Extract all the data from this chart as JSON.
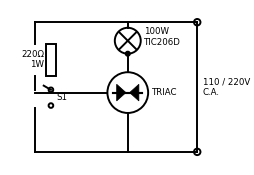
{
  "bg_color": "#ffffff",
  "line_color": "#000000",
  "lw": 1.4,
  "labels": {
    "resistor": "220Ω\n1W",
    "lamp": "100W\nTIC206D",
    "switch": "S1",
    "triac": "TRIAC",
    "supply": "110 / 220V\nC.A."
  },
  "fs": 6.2
}
